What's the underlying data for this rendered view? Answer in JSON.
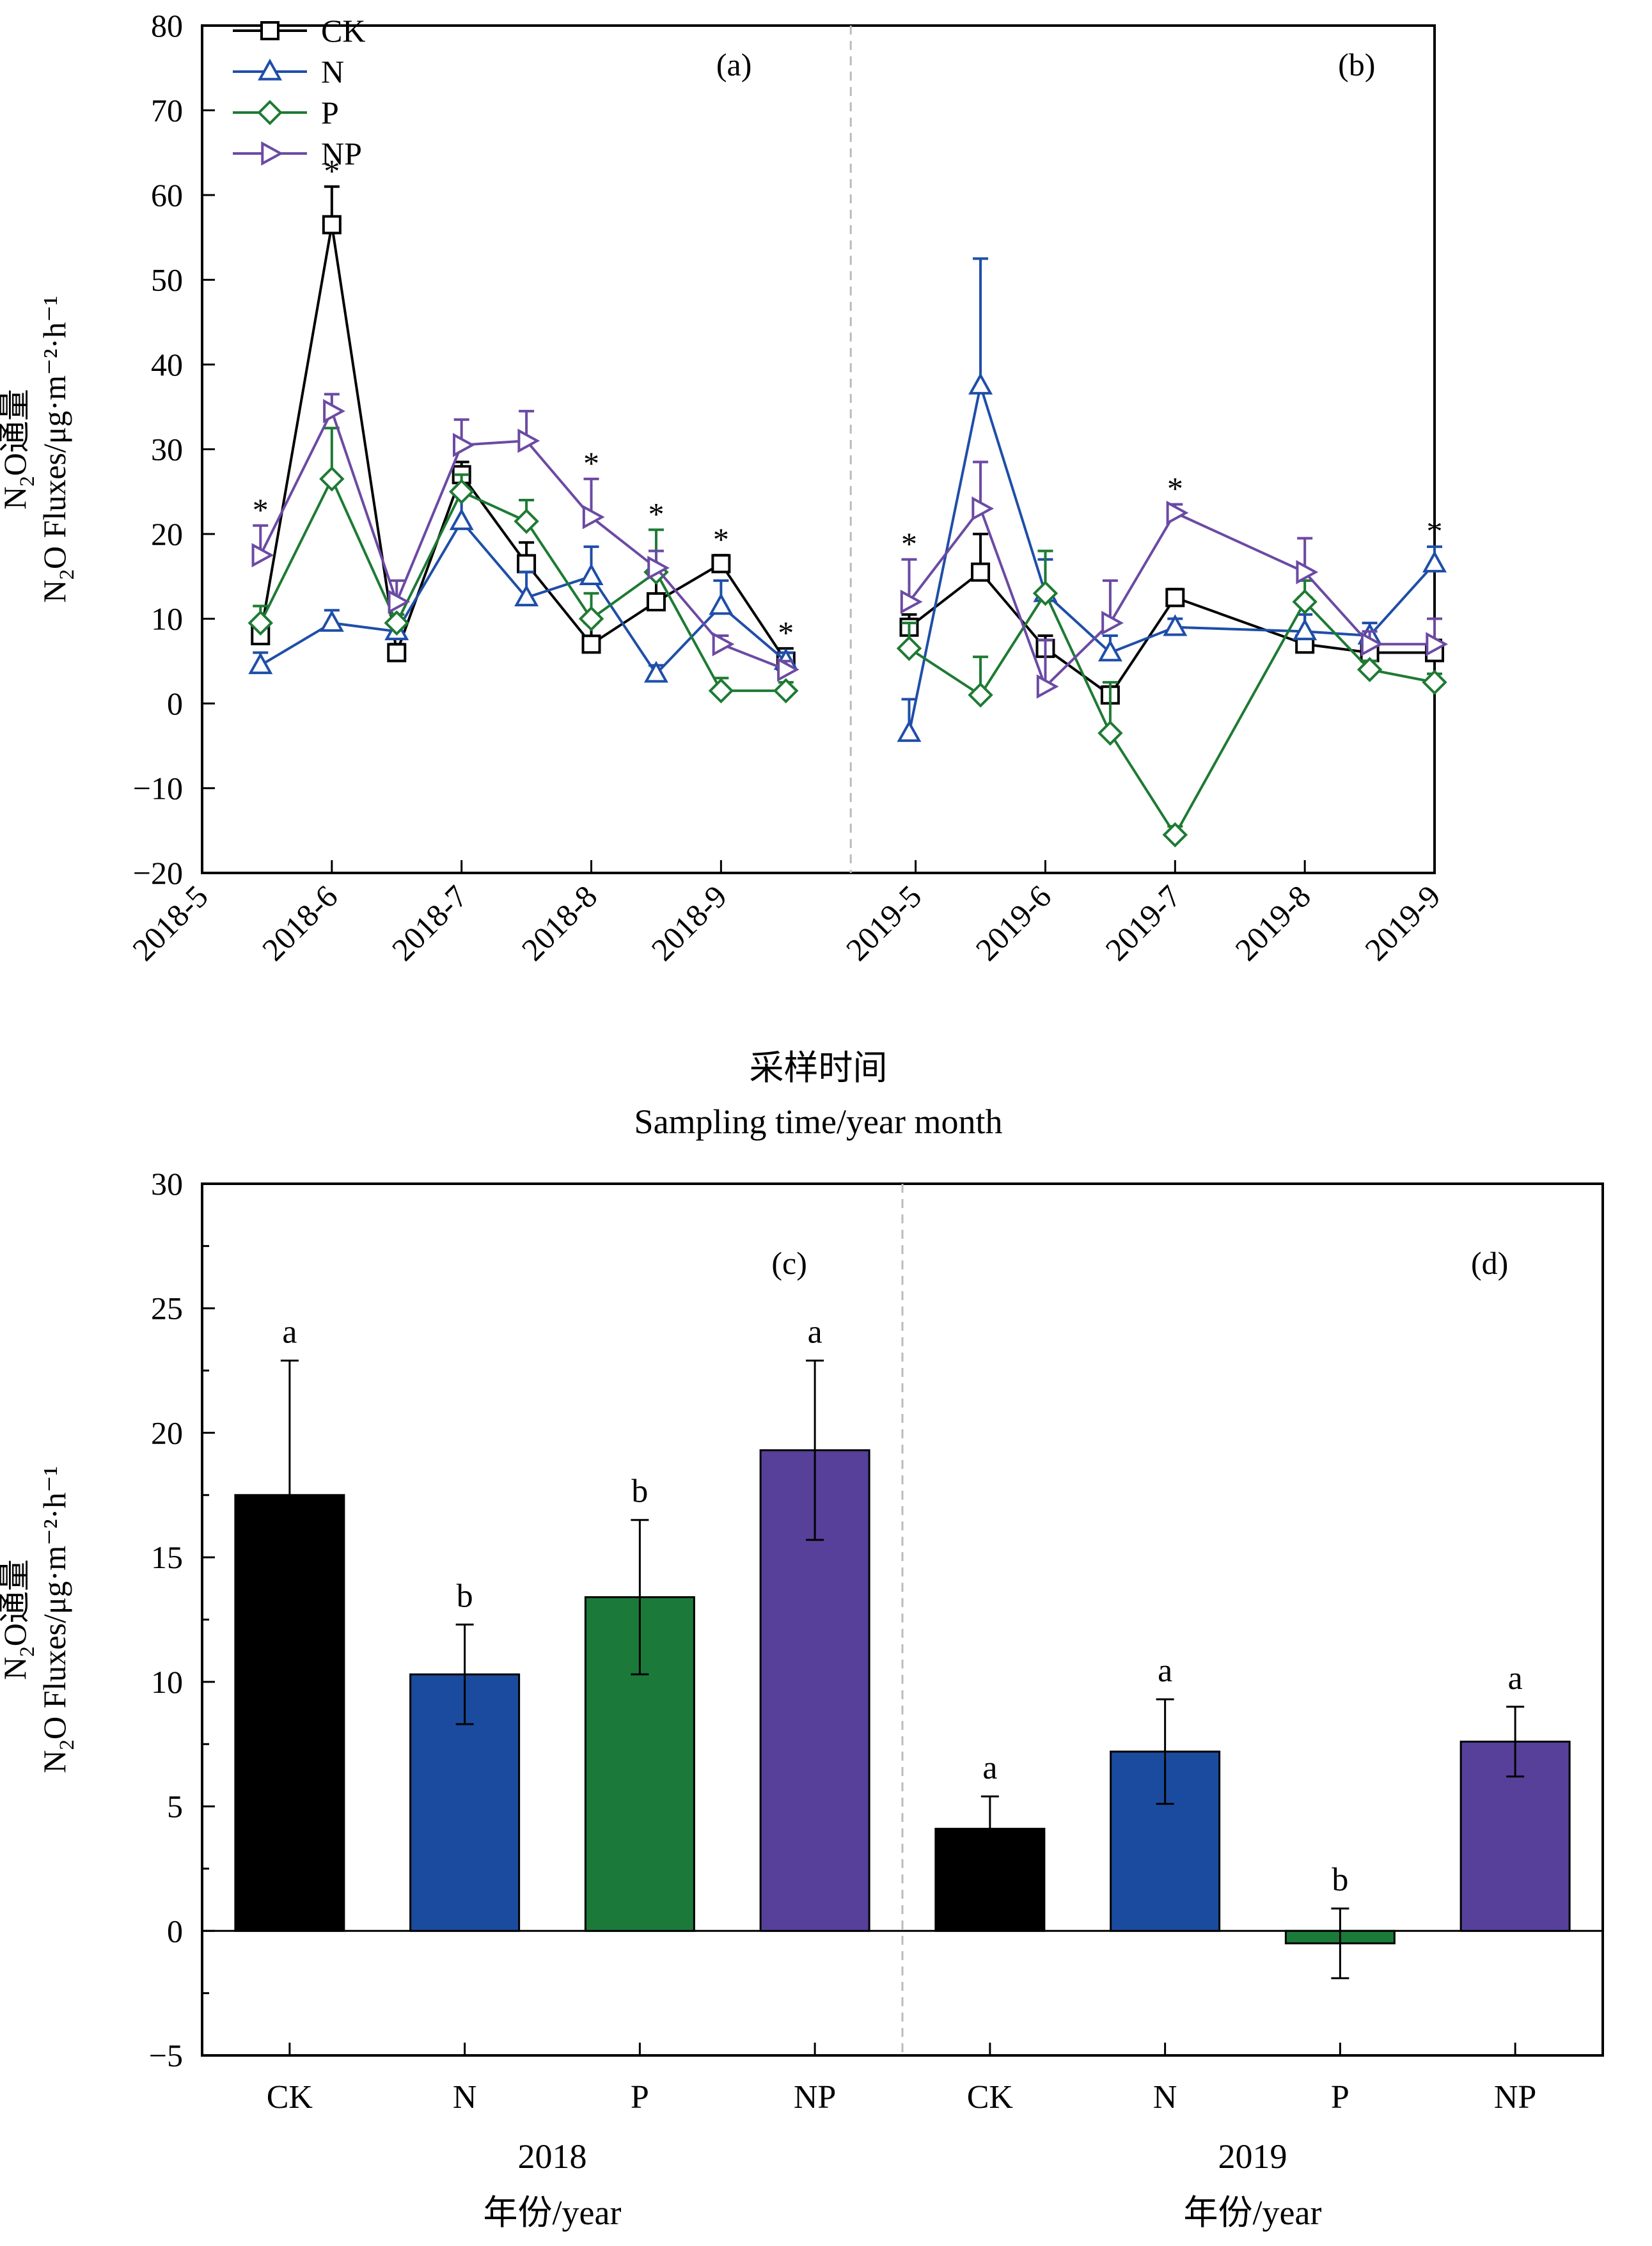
{
  "chart_data": [
    {
      "id": "line",
      "type": "line",
      "panels": [
        "(a)",
        "(b)"
      ],
      "ylabel_cn": "N2O通量",
      "ylabel_en": "N2O Fluxes/μg·m⁻²·h⁻¹",
      "xlabel_cn": "采样时间",
      "xlabel_en": "Sampling time/year month",
      "ylim": [
        -20,
        80
      ],
      "yticks": [
        -20,
        -10,
        0,
        10,
        20,
        30,
        40,
        50,
        60,
        70,
        80
      ],
      "xticks": [
        "2018-5",
        "2018-6",
        "2018-7",
        "2018-8",
        "2018-9",
        "2019-5",
        "2019-6",
        "2019-7",
        "2019-8",
        "2019-9"
      ],
      "x": [
        0.45,
        1.0,
        1.5,
        2.0,
        2.5,
        3.0,
        3.5,
        4.0,
        4.5,
        5.45,
        6.0,
        6.5,
        7.0,
        7.5,
        8.5,
        9.0,
        9.5
      ],
      "series": [
        {
          "name": "CK",
          "color": "#000000",
          "marker": "square",
          "values": [
            8,
            56.5,
            6,
            27,
            16.5,
            7,
            12,
            16.5,
            5,
            9,
            15.5,
            6.5,
            1,
            12.5,
            7,
            6,
            6
          ],
          "err": [
            1,
            4.5,
            1,
            1.5,
            2.5,
            2.5,
            4,
            1,
            1.5,
            1.5,
            4.5,
            1.5,
            1,
            1,
            5.5,
            1,
            1.5
          ]
        },
        {
          "name": "N",
          "color": "#1f4ea8",
          "marker": "triangle-up",
          "values": [
            4.5,
            9.5,
            8.5,
            21.5,
            12.5,
            15,
            3.5,
            11.5,
            5,
            -3.5,
            37.5,
            13,
            6,
            9,
            8.5,
            8,
            16.5
          ],
          "err": [
            1.5,
            1.5,
            1,
            4,
            3,
            3.5,
            1,
            3,
            1,
            4,
            15,
            4,
            2,
            1,
            2,
            1.5,
            2
          ]
        },
        {
          "name": "P",
          "color": "#1e7a34",
          "marker": "diamond",
          "values": [
            9.5,
            26.5,
            9.5,
            25,
            21.5,
            10,
            15.5,
            1.5,
            1.5,
            6.5,
            1,
            13,
            -3.5,
            -15.5,
            12,
            4,
            2.5
          ],
          "err": [
            2,
            6,
            1,
            2,
            2.5,
            3,
            5,
            1.5,
            1,
            3,
            4.5,
            5,
            6,
            1,
            2.5,
            1,
            1
          ]
        },
        {
          "name": "NP",
          "color": "#6b4aa3",
          "marker": "triangle-right",
          "values": [
            17.5,
            34.5,
            12,
            30.5,
            31,
            22,
            16,
            7,
            4,
            12,
            23,
            2,
            9.5,
            22.5,
            15.5,
            7,
            7
          ],
          "err": [
            3.5,
            2,
            2.5,
            3,
            3.5,
            4.5,
            2,
            1,
            1,
            5,
            5.5,
            5.5,
            5,
            1,
            4,
            1.5,
            3
          ]
        }
      ],
      "significance": {
        "marker": "*",
        "x": [
          0.45,
          1.0,
          3.0,
          3.5,
          4.0,
          4.5,
          5.45,
          7.5,
          9.5
        ]
      }
    },
    {
      "id": "bar",
      "type": "bar",
      "panels": [
        "(c)",
        "(d)"
      ],
      "ylabel_cn": "N2O通量",
      "ylabel_en": "N2O Fluxes/μg·m⁻²·h⁻¹",
      "ylim": [
        -5,
        30
      ],
      "yticks": [
        -5,
        0,
        5,
        10,
        15,
        20,
        25,
        30
      ],
      "groups": [
        {
          "year": "2018",
          "xlabel_cn": "年份/year",
          "categories": [
            "CK",
            "N",
            "P",
            "NP"
          ],
          "values": [
            17.5,
            10.3,
            13.4,
            19.3
          ],
          "err": [
            5.4,
            2.0,
            3.1,
            3.6
          ],
          "letters": [
            "a",
            "b",
            "b",
            "a"
          ]
        },
        {
          "year": "2019",
          "xlabel_cn": "年份/year",
          "categories": [
            "CK",
            "N",
            "P",
            "NP"
          ],
          "values": [
            4.1,
            7.2,
            -0.5,
            7.6
          ],
          "err": [
            1.3,
            2.1,
            1.4,
            1.4
          ],
          "letters": [
            "a",
            "a",
            "b",
            "a"
          ]
        }
      ],
      "colors": [
        "#000000",
        "#1a4b9e",
        "#1b7a3a",
        "#56409a"
      ]
    }
  ]
}
